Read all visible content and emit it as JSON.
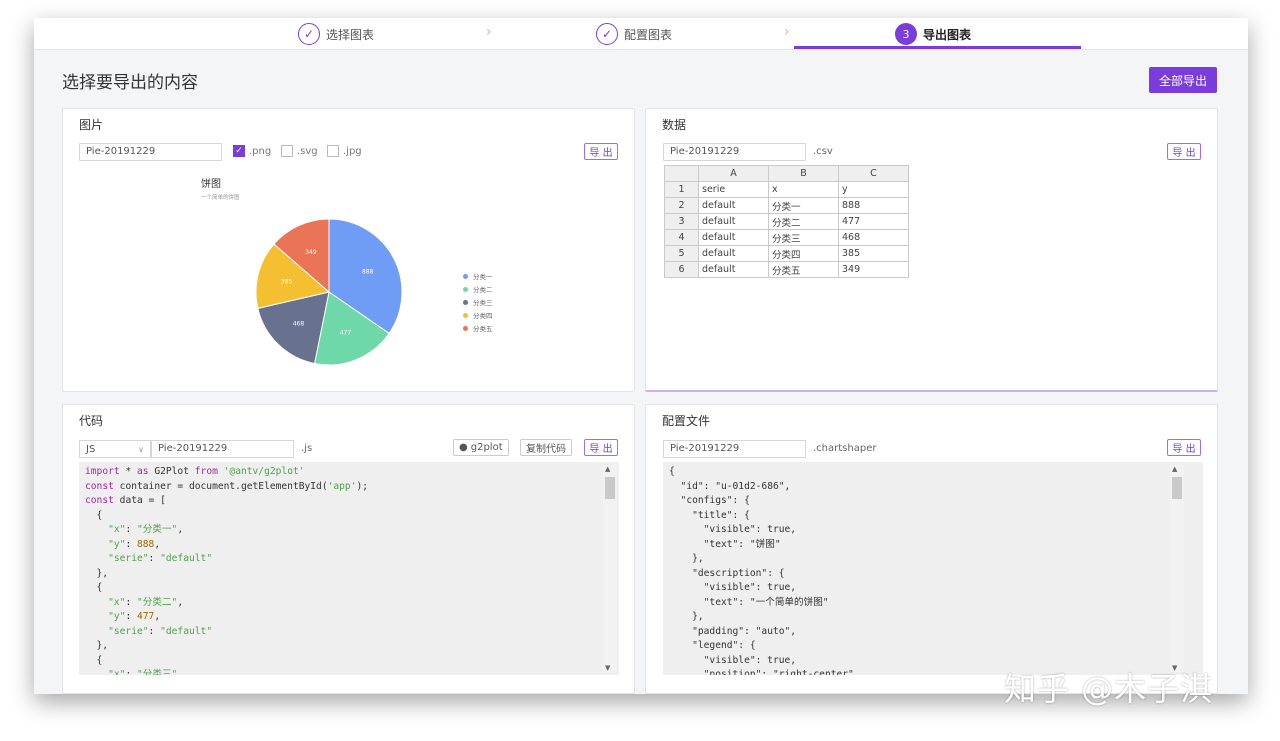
{
  "steps": [
    {
      "label": "选择图表",
      "state": "done"
    },
    {
      "label": "配置图表",
      "state": "done"
    },
    {
      "label": "导出图表",
      "number": "3",
      "state": "active"
    }
  ],
  "page_title": "选择要导出的内容",
  "export_all_label": "全部导出",
  "image_panel": {
    "title": "图片",
    "filename": "Pie-20191229",
    "formats": [
      {
        "label": ".png",
        "checked": true
      },
      {
        "label": ".svg",
        "checked": false
      },
      {
        "label": ".jpg",
        "checked": false
      }
    ],
    "export_label": "导 出",
    "chart_title": "饼图",
    "chart_subtitle": "一个简单的饼图"
  },
  "chart_data": {
    "type": "pie",
    "title": "饼图",
    "subtitle": "一个简单的饼图",
    "categories": [
      "分类一",
      "分类二",
      "分类三",
      "分类四",
      "分类五"
    ],
    "values": [
      888,
      477,
      468,
      385,
      349
    ],
    "colors": [
      "#6f9cf5",
      "#6fd8a8",
      "#68718d",
      "#f4c032",
      "#ea7556"
    ],
    "legend": "right-center"
  },
  "data_panel": {
    "title": "数据",
    "filename": "Pie-20191229",
    "ext": ".csv",
    "export_label": "导 出",
    "columns": [
      "A",
      "B",
      "C"
    ],
    "rows": [
      {
        "n": "1",
        "a": "serie",
        "b": "x",
        "c": "y"
      },
      {
        "n": "2",
        "a": "default",
        "b": "分类一",
        "c": "888"
      },
      {
        "n": "3",
        "a": "default",
        "b": "分类二",
        "c": "477"
      },
      {
        "n": "4",
        "a": "default",
        "b": "分类三",
        "c": "468"
      },
      {
        "n": "5",
        "a": "default",
        "b": "分类四",
        "c": "385"
      },
      {
        "n": "6",
        "a": "default",
        "b": "分类五",
        "c": "349"
      }
    ]
  },
  "code_panel": {
    "title": "代码",
    "language": "JS",
    "filename": "Pie-20191229",
    "ext": ".js",
    "g2plot_label": "g2plot",
    "copy_label": "复制代码",
    "export_label": "导 出",
    "code": "import * as G2Plot from '@antv/g2plot'\nconst container = document.getElementById('app');\nconst data = [\n  {\n    \"x\": \"分类一\",\n    \"y\": 888,\n    \"serie\": \"default\"\n  },\n  {\n    \"x\": \"分类二\",\n    \"y\": 477,\n    \"serie\": \"default\"\n  },\n  {\n    \"x\": \"分类三\""
  },
  "config_panel": {
    "title": "配置文件",
    "filename": "Pie-20191229",
    "ext": ".chartshaper",
    "export_label": "导 出",
    "code": "{\n  \"id\": \"u-01d2-686\",\n  \"configs\": {\n    \"title\": {\n      \"visible\": true,\n      \"text\": \"饼图\"\n    },\n    \"description\": {\n      \"visible\": true,\n      \"text\": \"一个简单的饼图\"\n    },\n    \"padding\": \"auto\",\n    \"legend\": {\n      \"visible\": true,\n      \"position\": \"right-center\""
  },
  "watermark": "知乎 @木子淇"
}
